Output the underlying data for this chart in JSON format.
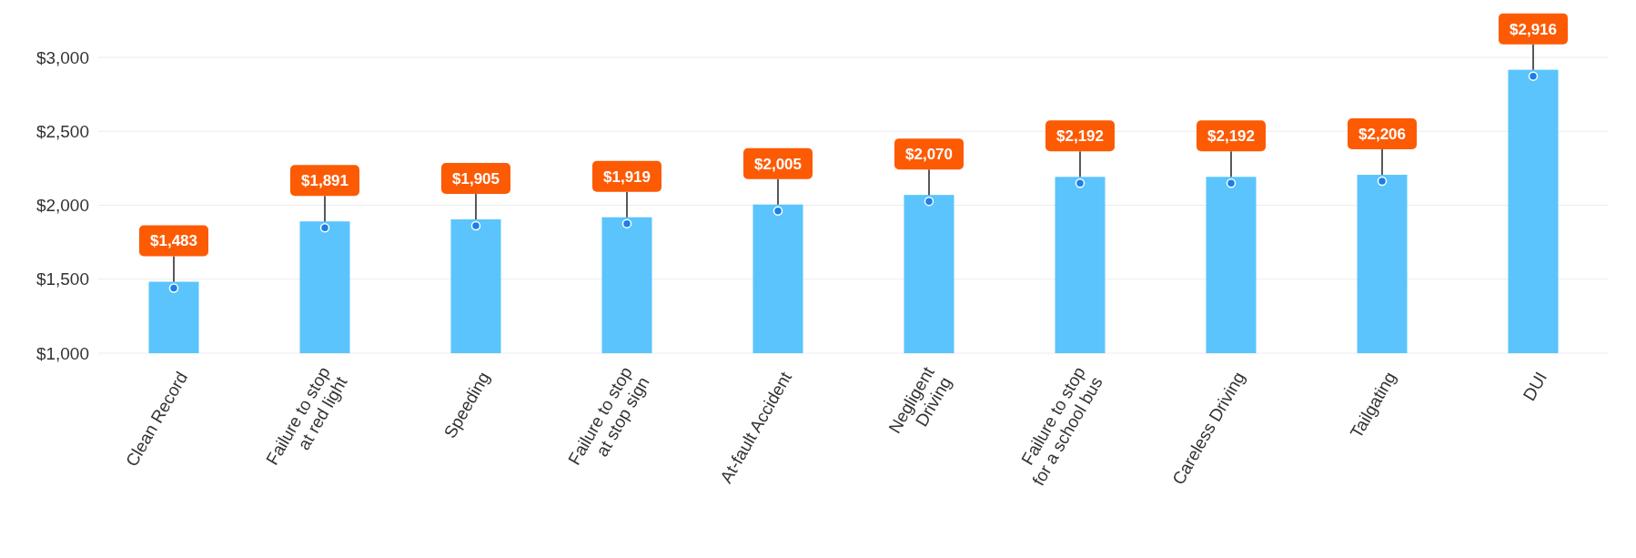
{
  "chart_data": {
    "type": "bar",
    "categories": [
      "Clean Record",
      "Failure to stop\nat red light",
      "Speeding",
      "Failure to stop\nat stop sign",
      "At-fault Accident",
      "Negligent\nDriving",
      "Failure to stop\nfor a school bus",
      "Careless Driving",
      "Tailgating",
      "DUI"
    ],
    "values": [
      1483,
      1891,
      1905,
      1919,
      2005,
      2070,
      2192,
      2192,
      2206,
      2916
    ],
    "value_labels": [
      "$1,483",
      "$1,891",
      "$1,905",
      "$1,919",
      "$2,005",
      "$2,070",
      "$2,192",
      "$2,192",
      "$2,206",
      "$2,916"
    ],
    "color": "#5bc4fd",
    "marker": "circle",
    "grid": "y",
    "ylim": [
      1000,
      3000
    ],
    "yticks": [
      {
        "value": 1000,
        "label": "$1,000"
      },
      {
        "value": 1500,
        "label": "$1,500"
      },
      {
        "value": 2000,
        "label": "$2,000"
      },
      {
        "value": 2500,
        "label": "$2,500"
      },
      {
        "value": 3000,
        "label": "$3,000"
      }
    ]
  }
}
